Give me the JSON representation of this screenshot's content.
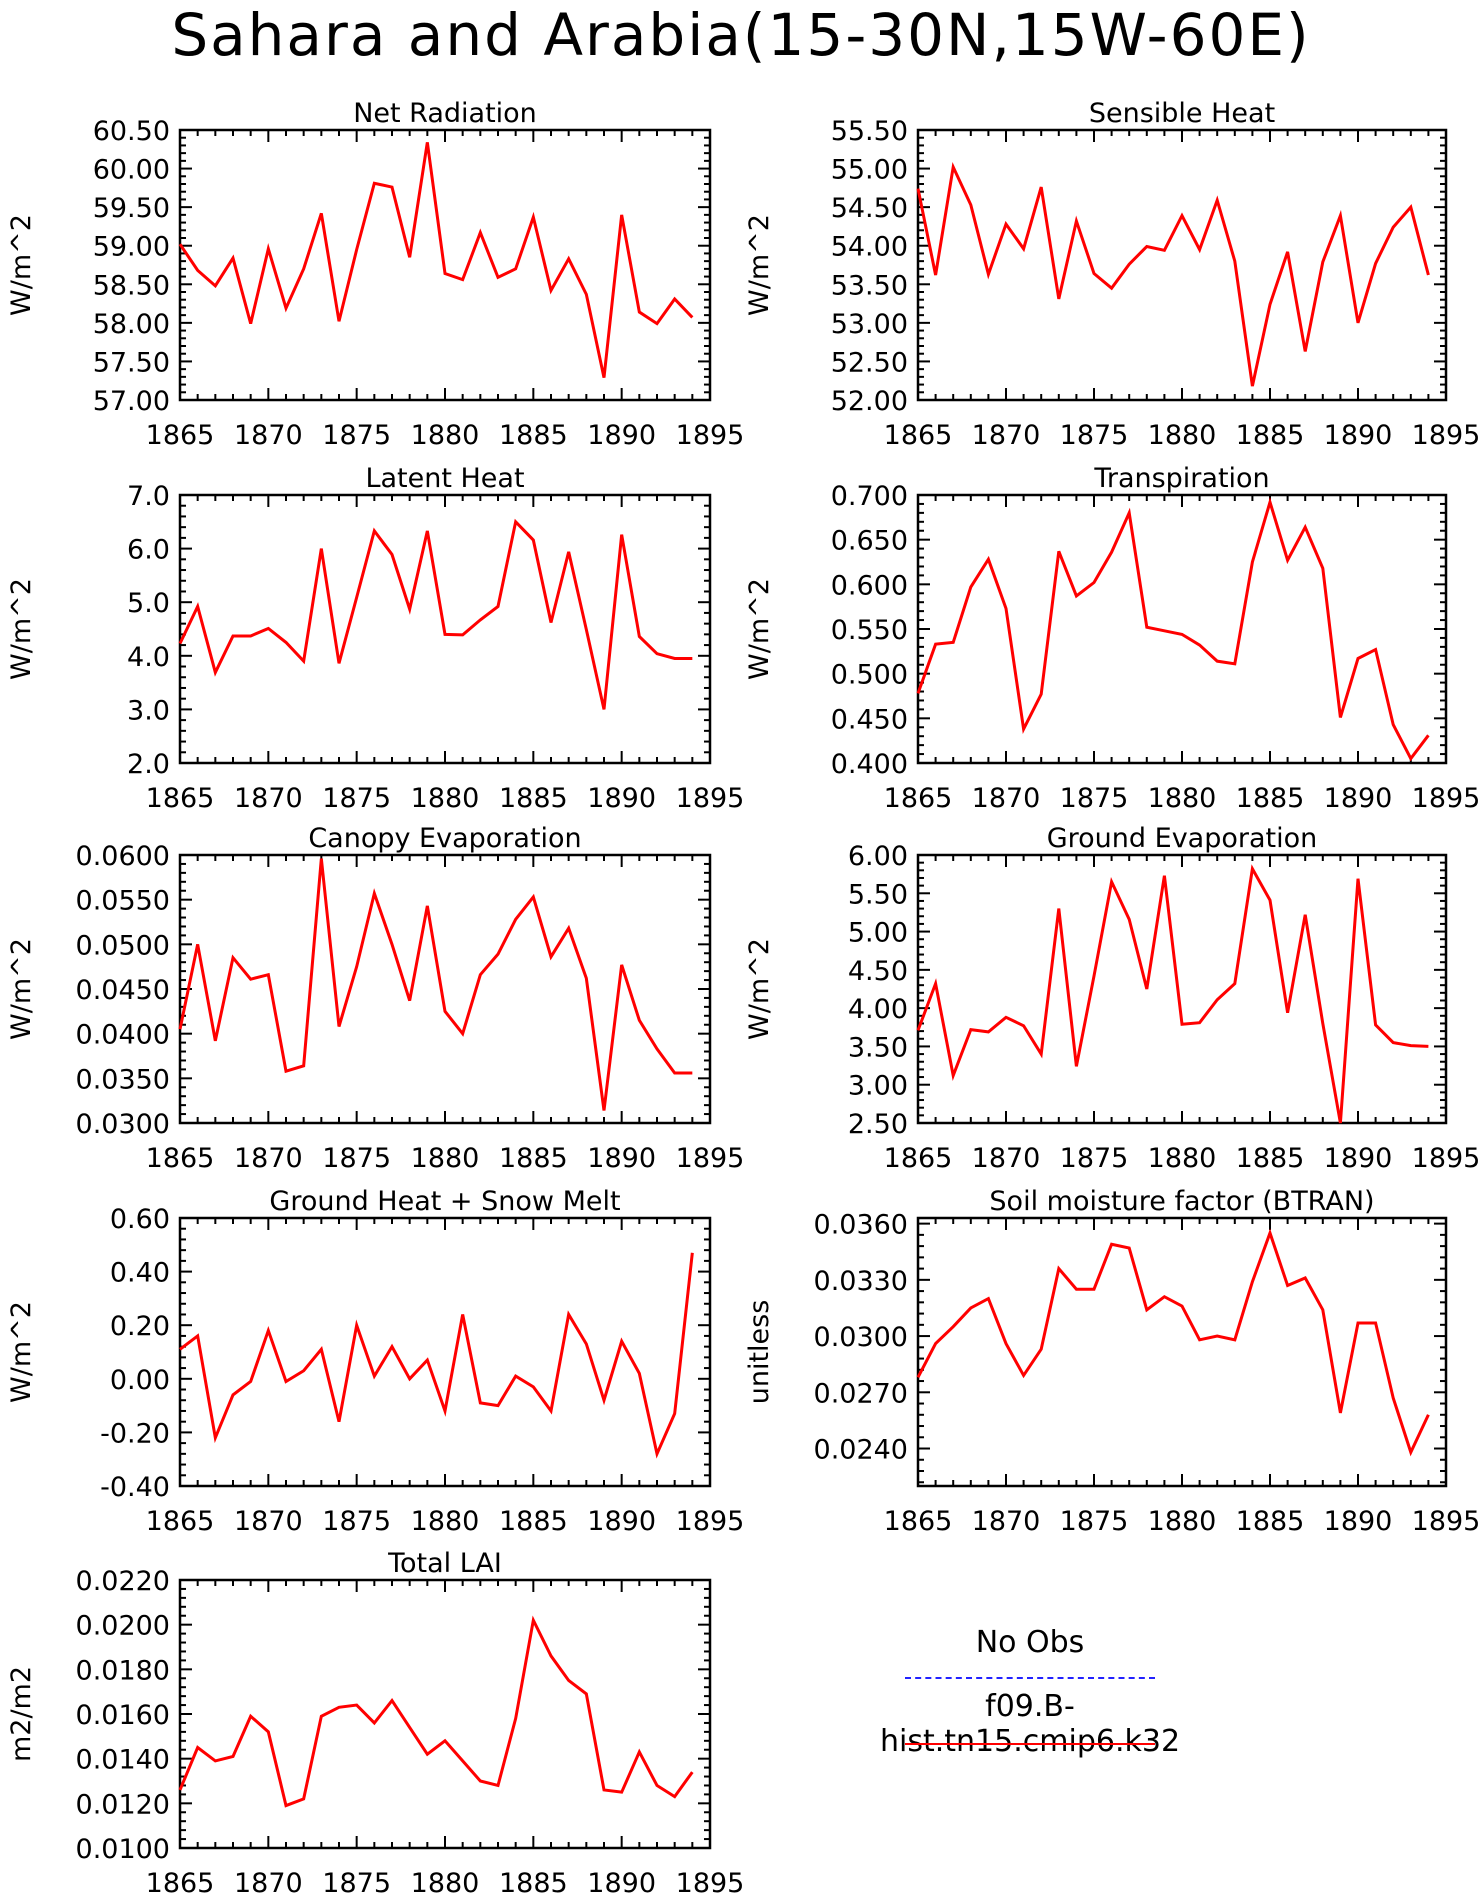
{
  "page": {
    "title": "Sahara and Arabia(15-30N,15W-60E)"
  },
  "colors": {
    "series_line": "#ff0000",
    "obs_line": "#2222ff",
    "axis": "#000000",
    "background": "#ffffff"
  },
  "legend": {
    "obs_label": "No Obs",
    "obs_style": "dashed",
    "model_label": "f09.B-hist.tn15.cmip6.k32",
    "model_style": "solid"
  },
  "chart_data": [
    {
      "type": "line",
      "title": "Net Radiation",
      "ylabel": "W/m^2",
      "xlabel": "",
      "xlim": [
        1865,
        1895
      ],
      "xticks": [
        "1865",
        "1870",
        "1875",
        "1880",
        "1885",
        "1890",
        "1895"
      ],
      "ylim": [
        57.0,
        60.5
      ],
      "yticks": [
        "57.00",
        "57.50",
        "58.00",
        "58.50",
        "59.00",
        "59.50",
        "60.00",
        "60.50"
      ],
      "grid": false,
      "series": [
        {
          "name": "f09.B-hist.tn15.cmip6.k32",
          "x": [
            1865,
            1866,
            1867,
            1868,
            1869,
            1870,
            1871,
            1872,
            1873,
            1874,
            1875,
            1876,
            1877,
            1878,
            1879,
            1880,
            1881,
            1882,
            1883,
            1884,
            1885,
            1886,
            1887,
            1888,
            1889,
            1890,
            1891,
            1892,
            1893,
            1894
          ],
          "y": [
            59.02,
            58.68,
            58.48,
            58.84,
            57.99,
            58.96,
            58.19,
            58.7,
            59.42,
            58.02,
            58.95,
            59.81,
            59.76,
            58.85,
            60.34,
            58.64,
            58.56,
            59.17,
            58.59,
            58.7,
            59.37,
            58.42,
            58.83,
            58.37,
            57.29,
            59.4,
            58.14,
            57.99,
            58.31,
            58.07
          ]
        }
      ]
    },
    {
      "type": "line",
      "title": "Sensible Heat",
      "ylabel": "W/m^2",
      "xlabel": "",
      "xlim": [
        1865,
        1895
      ],
      "xticks": [
        "1865",
        "1870",
        "1875",
        "1880",
        "1885",
        "1890",
        "1895"
      ],
      "ylim": [
        52.0,
        55.5
      ],
      "yticks": [
        "52.00",
        "52.50",
        "53.00",
        "53.50",
        "54.00",
        "54.50",
        "55.00",
        "55.50"
      ],
      "grid": false,
      "series": [
        {
          "name": "f09.B-hist.tn15.cmip6.k32",
          "x": [
            1865,
            1866,
            1867,
            1868,
            1869,
            1870,
            1871,
            1872,
            1873,
            1874,
            1875,
            1876,
            1877,
            1878,
            1879,
            1880,
            1881,
            1882,
            1883,
            1884,
            1885,
            1886,
            1887,
            1888,
            1889,
            1890,
            1891,
            1892,
            1893,
            1894
          ],
          "y": [
            54.74,
            53.62,
            55.02,
            54.53,
            53.63,
            54.28,
            53.96,
            54.76,
            53.31,
            54.32,
            53.64,
            53.45,
            53.76,
            53.99,
            53.94,
            54.39,
            53.95,
            54.59,
            53.8,
            52.18,
            53.24,
            53.92,
            52.63,
            53.79,
            54.39,
            53.0,
            53.77,
            54.24,
            54.5,
            53.62
          ]
        }
      ]
    },
    {
      "type": "line",
      "title": "Latent Heat",
      "ylabel": "W/m^2",
      "xlabel": "",
      "xlim": [
        1865,
        1895
      ],
      "xticks": [
        "1865",
        "1870",
        "1875",
        "1880",
        "1885",
        "1890",
        "1895"
      ],
      "ylim": [
        2.0,
        7.0
      ],
      "yticks": [
        "2.0",
        "3.0",
        "4.0",
        "5.0",
        "6.0",
        "7.0"
      ],
      "grid": false,
      "series": [
        {
          "name": "f09.B-hist.tn15.cmip6.k32",
          "x": [
            1865,
            1866,
            1867,
            1868,
            1869,
            1870,
            1871,
            1872,
            1873,
            1874,
            1875,
            1876,
            1877,
            1878,
            1879,
            1880,
            1881,
            1882,
            1883,
            1884,
            1885,
            1886,
            1887,
            1888,
            1889,
            1890,
            1891,
            1892,
            1893,
            1894
          ],
          "y": [
            4.23,
            4.92,
            3.69,
            4.37,
            4.37,
            4.51,
            4.25,
            3.9,
            6.0,
            3.86,
            5.09,
            6.33,
            5.89,
            4.87,
            6.33,
            4.4,
            4.39,
            4.67,
            4.92,
            6.5,
            6.16,
            4.62,
            5.94,
            4.49,
            3.0,
            6.26,
            4.36,
            4.04,
            3.95,
            3.95
          ]
        }
      ]
    },
    {
      "type": "line",
      "title": "Transpiration",
      "ylabel": "W/m^2",
      "xlabel": "",
      "xlim": [
        1865,
        1895
      ],
      "xticks": [
        "1865",
        "1870",
        "1875",
        "1880",
        "1885",
        "1890",
        "1895"
      ],
      "ylim": [
        0.4,
        0.7
      ],
      "yticks": [
        "0.400",
        "0.450",
        "0.500",
        "0.550",
        "0.600",
        "0.650",
        "0.700"
      ],
      "grid": false,
      "series": [
        {
          "name": "f09.B-hist.tn15.cmip6.k32",
          "x": [
            1865,
            1866,
            1867,
            1868,
            1869,
            1870,
            1871,
            1872,
            1873,
            1874,
            1875,
            1876,
            1877,
            1878,
            1879,
            1880,
            1881,
            1882,
            1883,
            1884,
            1885,
            1886,
            1887,
            1888,
            1889,
            1890,
            1891,
            1892,
            1893,
            1894
          ],
          "y": [
            0.478,
            0.533,
            0.535,
            0.597,
            0.628,
            0.573,
            0.438,
            0.477,
            0.637,
            0.587,
            0.602,
            0.636,
            0.68,
            0.552,
            0.548,
            0.544,
            0.532,
            0.514,
            0.511,
            0.625,
            0.692,
            0.627,
            0.664,
            0.618,
            0.451,
            0.517,
            0.527,
            0.443,
            0.405,
            0.431
          ]
        }
      ]
    },
    {
      "type": "line",
      "title": "Canopy Evaporation",
      "ylabel": "W/m^2",
      "xlabel": "",
      "xlim": [
        1865,
        1895
      ],
      "xticks": [
        "1865",
        "1870",
        "1875",
        "1880",
        "1885",
        "1890",
        "1895"
      ],
      "ylim": [
        0.03,
        0.06
      ],
      "yticks": [
        "0.0300",
        "0.0350",
        "0.0400",
        "0.0450",
        "0.0500",
        "0.0550",
        "0.0600"
      ],
      "grid": false,
      "series": [
        {
          "name": "f09.B-hist.tn15.cmip6.k32",
          "x": [
            1865,
            1866,
            1867,
            1868,
            1869,
            1870,
            1871,
            1872,
            1873,
            1874,
            1875,
            1876,
            1877,
            1878,
            1879,
            1880,
            1881,
            1882,
            1883,
            1884,
            1885,
            1886,
            1887,
            1888,
            1889,
            1890,
            1891,
            1892,
            1893,
            1894
          ],
          "y": [
            0.0405,
            0.05,
            0.0392,
            0.0485,
            0.0461,
            0.0466,
            0.0358,
            0.0364,
            0.0596,
            0.0408,
            0.0475,
            0.0557,
            0.05,
            0.0437,
            0.0543,
            0.0425,
            0.04,
            0.0466,
            0.0489,
            0.0528,
            0.0553,
            0.0486,
            0.0518,
            0.0462,
            0.0314,
            0.0477,
            0.0415,
            0.0383,
            0.0356,
            0.0356
          ]
        }
      ]
    },
    {
      "type": "line",
      "title": "Ground Evaporation",
      "ylabel": "W/m^2",
      "xlabel": "",
      "xlim": [
        1865,
        1895
      ],
      "xticks": [
        "1865",
        "1870",
        "1875",
        "1880",
        "1885",
        "1890",
        "1895"
      ],
      "ylim": [
        2.5,
        6.0
      ],
      "yticks": [
        "2.50",
        "3.00",
        "3.50",
        "4.00",
        "4.50",
        "5.00",
        "5.50",
        "6.00"
      ],
      "grid": false,
      "series": [
        {
          "name": "f09.B-hist.tn15.cmip6.k32",
          "x": [
            1865,
            1866,
            1867,
            1868,
            1869,
            1870,
            1871,
            1872,
            1873,
            1874,
            1875,
            1876,
            1877,
            1878,
            1879,
            1880,
            1881,
            1882,
            1883,
            1884,
            1885,
            1886,
            1887,
            1888,
            1889,
            1890,
            1891,
            1892,
            1893,
            1894
          ],
          "y": [
            3.71,
            4.32,
            3.12,
            3.72,
            3.69,
            3.88,
            3.77,
            3.4,
            5.3,
            3.24,
            4.42,
            5.65,
            5.16,
            4.25,
            5.73,
            3.79,
            3.81,
            4.11,
            4.32,
            5.82,
            5.41,
            3.94,
            5.22,
            3.8,
            2.5,
            5.69,
            3.78,
            3.55,
            3.51,
            3.5
          ]
        }
      ]
    },
    {
      "type": "line",
      "title": "Ground Heat + Snow Melt",
      "ylabel": "W/m^2",
      "xlabel": "",
      "xlim": [
        1865,
        1895
      ],
      "xticks": [
        "1865",
        "1870",
        "1875",
        "1880",
        "1885",
        "1890",
        "1895"
      ],
      "ylim": [
        -0.4,
        0.6
      ],
      "yticks": [
        "-0.40",
        "-0.20",
        "0.00",
        "0.20",
        "0.40",
        "0.60"
      ],
      "grid": false,
      "series": [
        {
          "name": "f09.B-hist.tn15.cmip6.k32",
          "x": [
            1865,
            1866,
            1867,
            1868,
            1869,
            1870,
            1871,
            1872,
            1873,
            1874,
            1875,
            1876,
            1877,
            1878,
            1879,
            1880,
            1881,
            1882,
            1883,
            1884,
            1885,
            1886,
            1887,
            1888,
            1889,
            1890,
            1891,
            1892,
            1893,
            1894
          ],
          "y": [
            0.11,
            0.16,
            -0.22,
            -0.06,
            -0.01,
            0.18,
            -0.01,
            0.03,
            0.11,
            -0.16,
            0.2,
            0.01,
            0.12,
            0.0,
            0.07,
            -0.12,
            0.24,
            -0.09,
            -0.1,
            0.01,
            -0.03,
            -0.12,
            0.24,
            0.13,
            -0.08,
            0.14,
            0.02,
            -0.28,
            -0.13,
            0.47
          ]
        }
      ]
    },
    {
      "type": "line",
      "title": "Soil moisture factor (BTRAN)",
      "ylabel": "unitless",
      "xlabel": "",
      "xlim": [
        1865,
        1895
      ],
      "xticks": [
        "1865",
        "1870",
        "1875",
        "1880",
        "1885",
        "1890",
        "1895"
      ],
      "ylim": [
        0.022,
        0.0363
      ],
      "yticks": [
        "0.0240",
        "0.0270",
        "0.0300",
        "0.0330",
        "0.0360"
      ],
      "grid": false,
      "series": [
        {
          "name": "f09.B-hist.tn15.cmip6.k32",
          "x": [
            1865,
            1866,
            1867,
            1868,
            1869,
            1870,
            1871,
            1872,
            1873,
            1874,
            1875,
            1876,
            1877,
            1878,
            1879,
            1880,
            1881,
            1882,
            1883,
            1884,
            1885,
            1886,
            1887,
            1888,
            1889,
            1890,
            1891,
            1892,
            1893,
            1894
          ],
          "y": [
            0.0278,
            0.0296,
            0.0305,
            0.0315,
            0.032,
            0.0296,
            0.0279,
            0.0293,
            0.0336,
            0.0325,
            0.0325,
            0.0349,
            0.0347,
            0.0314,
            0.0321,
            0.0316,
            0.0298,
            0.03,
            0.0298,
            0.0329,
            0.0355,
            0.0327,
            0.0331,
            0.0314,
            0.0259,
            0.0307,
            0.0307,
            0.0267,
            0.0238,
            0.0258
          ]
        }
      ]
    },
    {
      "type": "line",
      "title": "Total LAI",
      "ylabel": "m2/m2",
      "xlabel": "",
      "xlim": [
        1865,
        1895
      ],
      "xticks": [
        "1865",
        "1870",
        "1875",
        "1880",
        "1885",
        "1890",
        "1895"
      ],
      "ylim": [
        0.01,
        0.022
      ],
      "yticks": [
        "0.0100",
        "0.0120",
        "0.0140",
        "0.0160",
        "0.0180",
        "0.0200",
        "0.0220"
      ],
      "grid": false,
      "series": [
        {
          "name": "f09.B-hist.tn15.cmip6.k32",
          "x": [
            1865,
            1866,
            1867,
            1868,
            1869,
            1870,
            1871,
            1872,
            1873,
            1874,
            1875,
            1876,
            1877,
            1878,
            1879,
            1880,
            1881,
            1882,
            1883,
            1884,
            1885,
            1886,
            1887,
            1888,
            1889,
            1890,
            1891,
            1892,
            1893,
            1894
          ],
          "y": [
            0.0126,
            0.0145,
            0.0139,
            0.0141,
            0.0159,
            0.0152,
            0.0119,
            0.0122,
            0.0159,
            0.0163,
            0.0164,
            0.0156,
            0.0166,
            0.0154,
            0.0142,
            0.0148,
            0.0139,
            0.013,
            0.0128,
            0.0158,
            0.0202,
            0.0186,
            0.0175,
            0.0169,
            0.0126,
            0.0125,
            0.0143,
            0.0128,
            0.0123,
            0.0134
          ]
        }
      ]
    }
  ]
}
